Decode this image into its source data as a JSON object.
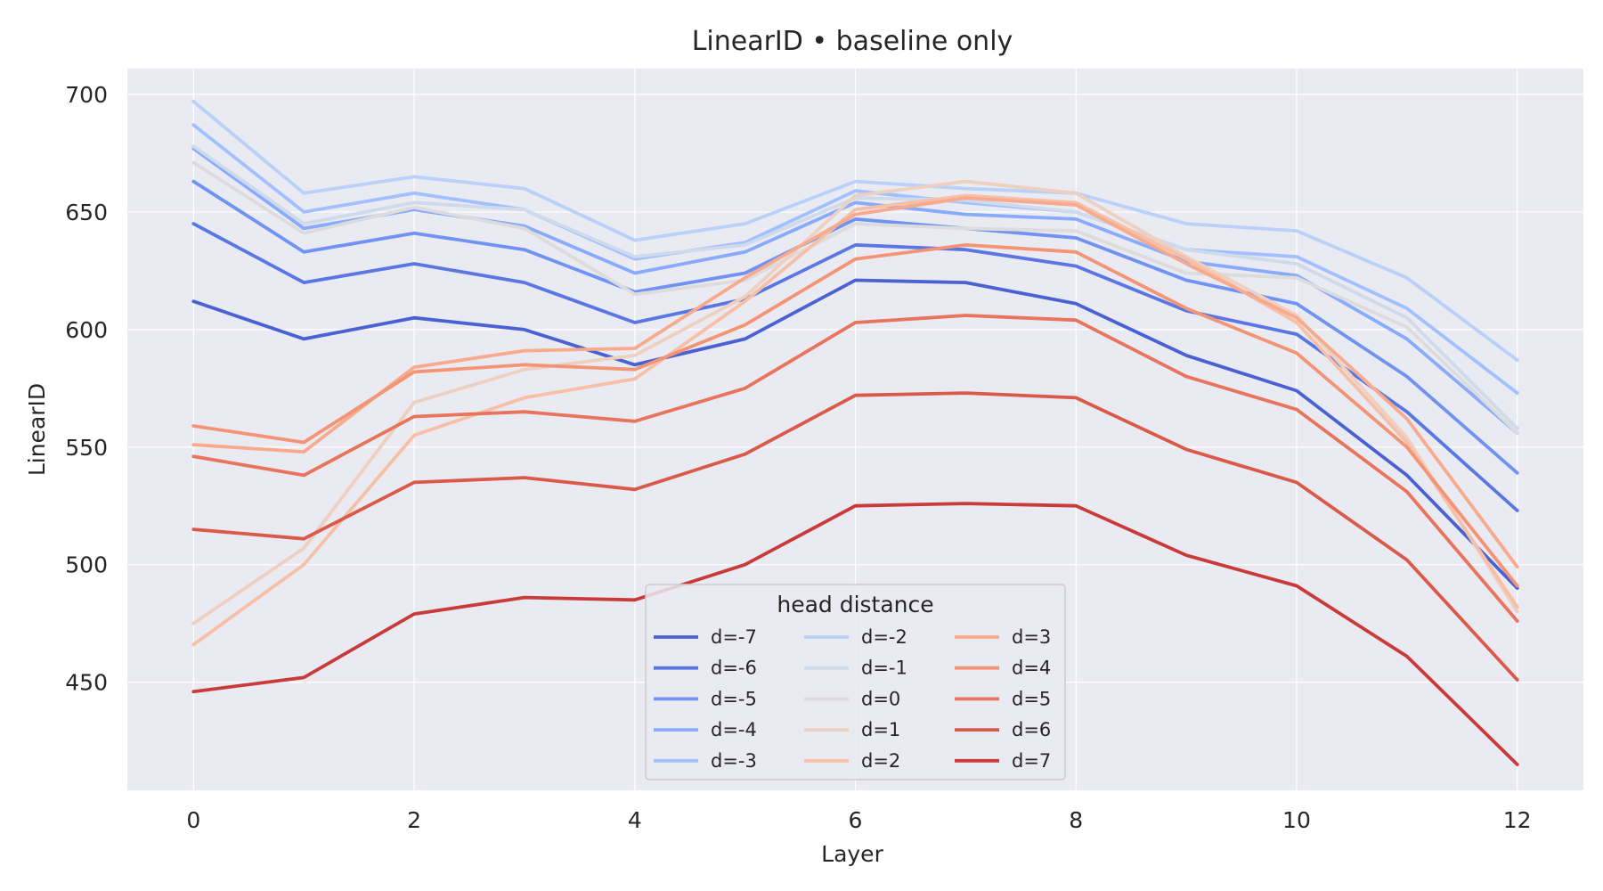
{
  "chart_data": {
    "type": "line",
    "title": "LinearID • baseline only",
    "xlabel": "Layer",
    "ylabel": "LinearID",
    "x": [
      0,
      1,
      2,
      3,
      4,
      5,
      6,
      7,
      8,
      9,
      10,
      11,
      12
    ],
    "xticks": [
      0,
      2,
      4,
      6,
      8,
      10,
      12
    ],
    "yticks": [
      450,
      500,
      550,
      600,
      650,
      700
    ],
    "xlim": [
      -0.6,
      12.6
    ],
    "ylim": [
      404,
      711
    ],
    "grid": true,
    "background": "#eaeaf2",
    "legend": {
      "title": "head distance",
      "placement": "lower center",
      "columns": 3
    },
    "series": [
      {
        "name": "d=-7",
        "color": "#4961d2",
        "values": [
          612,
          596,
          605,
          600,
          585,
          596,
          621,
          620,
          611,
          589,
          574,
          538,
          490
        ]
      },
      {
        "name": "d=-6",
        "color": "#5977e3",
        "values": [
          645,
          620,
          628,
          620,
          603,
          613,
          636,
          634,
          627,
          608,
          598,
          565,
          523
        ]
      },
      {
        "name": "d=-5",
        "color": "#6f92f3",
        "values": [
          663,
          633,
          641,
          634,
          616,
          624,
          647,
          643,
          639,
          621,
          611,
          580,
          539
        ]
      },
      {
        "name": "d=-4",
        "color": "#88abfd",
        "values": [
          677,
          643,
          651,
          644,
          624,
          633,
          654,
          649,
          647,
          629,
          623,
          596,
          556
        ]
      },
      {
        "name": "d=-3",
        "color": "#a1c0ff",
        "values": [
          687,
          650,
          658,
          651,
          630,
          637,
          659,
          654,
          650,
          634,
          631,
          609,
          573
        ]
      },
      {
        "name": "d=-2",
        "color": "#b9d0f9",
        "values": [
          697,
          658,
          665,
          660,
          638,
          645,
          663,
          660,
          658,
          645,
          642,
          622,
          587
        ]
      },
      {
        "name": "d=-1",
        "color": "#cfdaea",
        "values": [
          678,
          645,
          654,
          651,
          631,
          636,
          656,
          655,
          650,
          634,
          628,
          605,
          558
        ]
      },
      {
        "name": "d=0",
        "color": "#dddcdc",
        "values": [
          671,
          641,
          652,
          643,
          615,
          621,
          645,
          643,
          642,
          624,
          622,
          601,
          556
        ]
      },
      {
        "name": "d=1",
        "color": "#eed0c0",
        "values": [
          475,
          507,
          569,
          583,
          589,
          614,
          657,
          663,
          658,
          631,
          606,
          554,
          480
        ]
      },
      {
        "name": "d=2",
        "color": "#f6bfa6",
        "values": [
          466,
          500,
          555,
          571,
          579,
          612,
          651,
          657,
          654,
          630,
          603,
          552,
          482
        ]
      },
      {
        "name": "d=3",
        "color": "#f7aa8c",
        "values": [
          551,
          548,
          584,
          591,
          592,
          622,
          649,
          656,
          653,
          628,
          605,
          562,
          499
        ]
      },
      {
        "name": "d=4",
        "color": "#f39475",
        "values": [
          559,
          552,
          582,
          585,
          583,
          602,
          630,
          636,
          633,
          609,
          590,
          550,
          491
        ]
      },
      {
        "name": "d=5",
        "color": "#e7745b",
        "values": [
          546,
          538,
          563,
          565,
          561,
          575,
          603,
          606,
          604,
          580,
          566,
          531,
          476
        ]
      },
      {
        "name": "d=6",
        "color": "#da5a49",
        "values": [
          515,
          511,
          535,
          537,
          532,
          547,
          572,
          573,
          571,
          549,
          535,
          502,
          451
        ]
      },
      {
        "name": "d=7",
        "color": "#c93b3a",
        "values": [
          446,
          452,
          479,
          486,
          485,
          500,
          525,
          526,
          525,
          504,
          491,
          461,
          415
        ]
      }
    ]
  }
}
